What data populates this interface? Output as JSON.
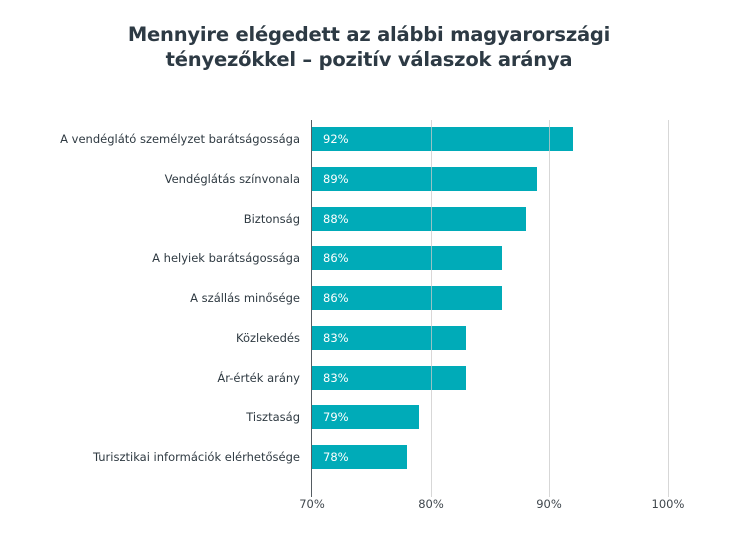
{
  "chart_data": {
    "type": "bar",
    "orientation": "horizontal",
    "title": "Mennyire elégedett az alábbi magyarországi tényezőkkel – pozitív válaszok aránya",
    "title_lines": [
      "Mennyire elégedett az alábbi magyarországi",
      "tényezőkkel – pozitív válaszok aránya"
    ],
    "categories": [
      "A vendéglátó személyzet barátságossága",
      "Vendéglátás színvonala",
      "Biztonság",
      "A helyiek barátságossága",
      "A szállás minősége",
      "Közlekedés",
      "Ár-érték arány",
      "Tisztaság",
      "Turisztikai információk elérhetősége"
    ],
    "values": [
      92,
      89,
      88,
      86,
      86,
      83,
      83,
      79,
      78
    ],
    "value_labels": [
      "92%",
      "89%",
      "88%",
      "86%",
      "86%",
      "83%",
      "83%",
      "79%",
      "78%"
    ],
    "xlabel": "",
    "ylabel": "",
    "xlim": [
      70,
      100
    ],
    "x_ticks": [
      70,
      80,
      90,
      100
    ],
    "x_tick_labels": [
      "70%",
      "80%",
      "90%",
      "100%"
    ],
    "grid": true,
    "legend": null,
    "bar_color": "#00abb8"
  }
}
